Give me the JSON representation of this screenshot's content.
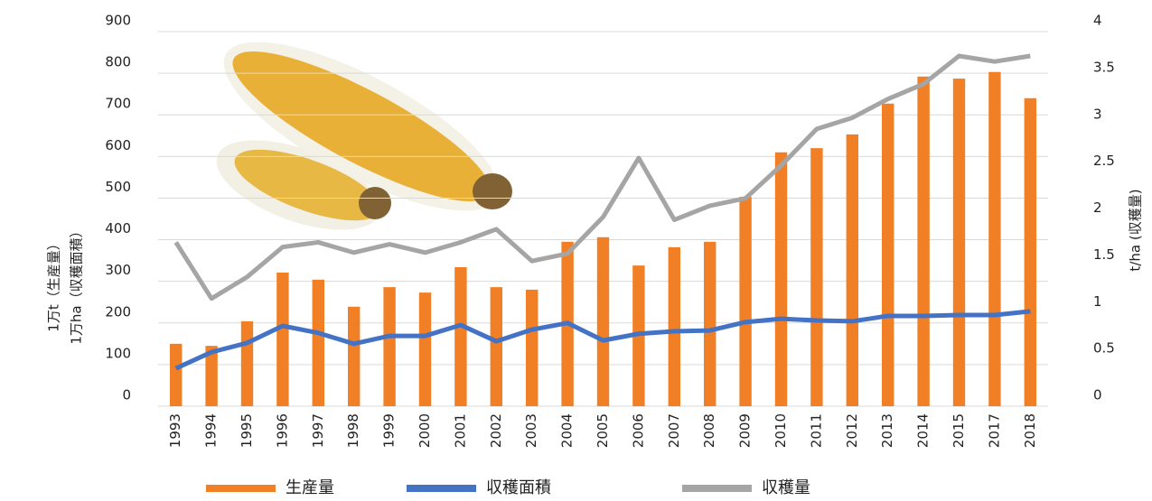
{
  "chart_data": {
    "type": "bar-line",
    "y_label_lines": [
      "1万t（生産量）",
      "1万ha（収穫面積）"
    ],
    "y2_label": "t/ha (収穫量)",
    "categories": [
      "1993",
      "1994",
      "1995",
      "1996",
      "1997",
      "1998",
      "1999",
      "2000",
      "2001",
      "2002",
      "2003",
      "2004",
      "2005",
      "2006",
      "2007",
      "2008",
      "2009",
      "2010",
      "2011",
      "2012",
      "2013",
      "2014",
      "2015",
      "2017",
      "2018"
    ],
    "series": [
      {
        "name": "生産量",
        "type": "bar",
        "color": "#f07f26",
        "values": [
          150,
          145,
          204,
          321,
          304,
          239,
          286,
          273,
          334,
          286,
          280,
          395,
          406,
          338,
          382,
          395,
          503,
          610,
          620,
          653,
          727,
          792,
          787,
          803,
          740
        ]
      },
      {
        "name": "収穫面積",
        "type": "line",
        "color": "#4472c4",
        "values": [
          91,
          130,
          152,
          193,
          176,
          150,
          169,
          169,
          195,
          156,
          184,
          200,
          158,
          174,
          180,
          182,
          202,
          210,
          206,
          204,
          217,
          217,
          219,
          219,
          228
        ]
      },
      {
        "name": "収穫量",
        "type": "line",
        "axis": "y2",
        "color": "#a5a5a5",
        "values": [
          1.75,
          1.15,
          1.38,
          1.7,
          1.75,
          1.64,
          1.73,
          1.64,
          1.75,
          1.89,
          1.55,
          1.63,
          2.02,
          2.65,
          1.99,
          2.14,
          2.22,
          2.57,
          2.96,
          3.08,
          3.28,
          3.44,
          3.74,
          3.68,
          3.74
        ]
      }
    ],
    "ylim": [
      0,
      900
    ],
    "yticks": [
      0,
      100,
      200,
      300,
      400,
      500,
      600,
      700,
      800,
      900
    ],
    "y2lim": [
      0,
      4
    ],
    "y2ticks": [
      0,
      0.5,
      1,
      1.5,
      2,
      2.5,
      3,
      3.5,
      4
    ],
    "grid": true
  }
}
